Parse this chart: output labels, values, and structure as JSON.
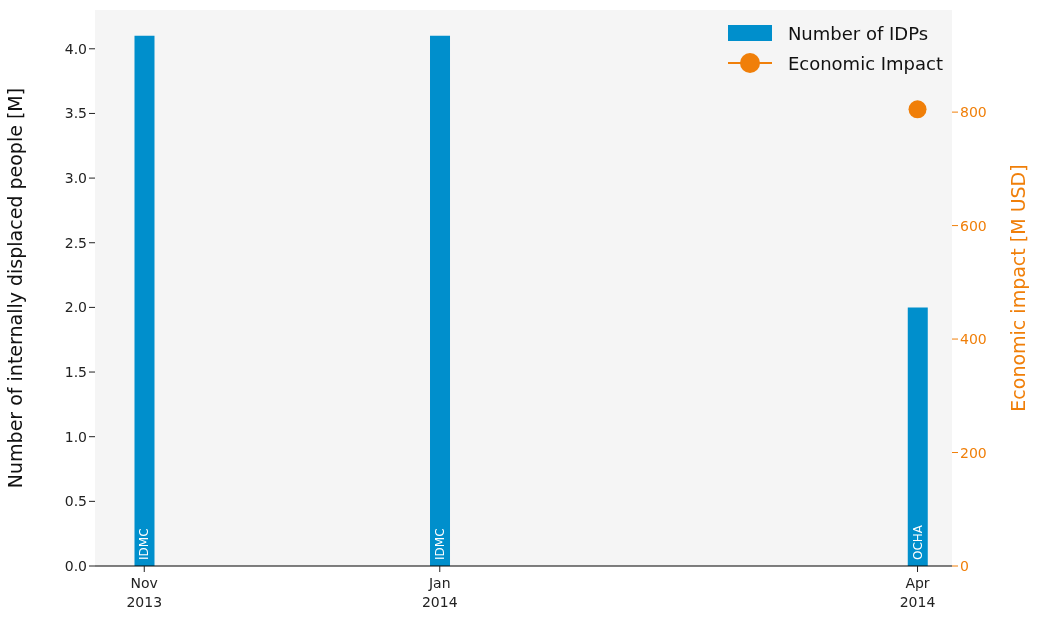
{
  "chart_data": {
    "type": "bar",
    "x": [
      "2013-11-08",
      "2014-01-07",
      "2014-04-14"
    ],
    "series": [
      {
        "name": "Number of IDPs",
        "color": "#008fcc",
        "values": [
          4.1,
          4.1,
          2.0
        ]
      },
      {
        "name": "Economic Impact",
        "type": "scatter",
        "axis": "y2",
        "color": "#f07f09",
        "x": [
          "2014-04-14"
        ],
        "values": [
          805
        ]
      }
    ],
    "xlim": [
      "2013-10-29",
      "2014-04-21"
    ],
    "xticks": [
      {
        "value": "2013-11-08",
        "label": "Nov\n2013"
      },
      {
        "value": "2014-01-07",
        "label": "Jan\n2014"
      },
      {
        "value": "2014-04-14",
        "label": "Apr\n2014"
      }
    ],
    "ylim": [
      0,
      4.3
    ],
    "yticks": [
      {
        "value": 0,
        "label": "0.0"
      },
      {
        "value": 0.5,
        "label": "0.5"
      },
      {
        "value": 1,
        "label": "1.0"
      },
      {
        "value": 1.5,
        "label": "1.5"
      },
      {
        "value": 2,
        "label": "2.0"
      },
      {
        "value": 2.5,
        "label": "2.5"
      },
      {
        "value": 3,
        "label": "3.0"
      },
      {
        "value": 3.5,
        "label": "3.5"
      },
      {
        "value": 4,
        "label": "4.0"
      }
    ],
    "y2lim": [
      0,
      980
    ],
    "y2ticks": [
      0,
      200,
      400,
      600,
      800
    ],
    "ylabel": "Number of internally displaced people [M]",
    "y2label": "Economic impact [M USD]",
    "annotations": [
      {
        "text": "IDMC",
        "x": "2013-11-08",
        "y": 0
      },
      {
        "text": "IDMC",
        "x": "2014-01-07",
        "y": 0
      },
      {
        "text": "OCHA",
        "x": "2014-04-14",
        "y": 0
      }
    ],
    "legend": "top right",
    "marker": "circle",
    "grid": false
  }
}
